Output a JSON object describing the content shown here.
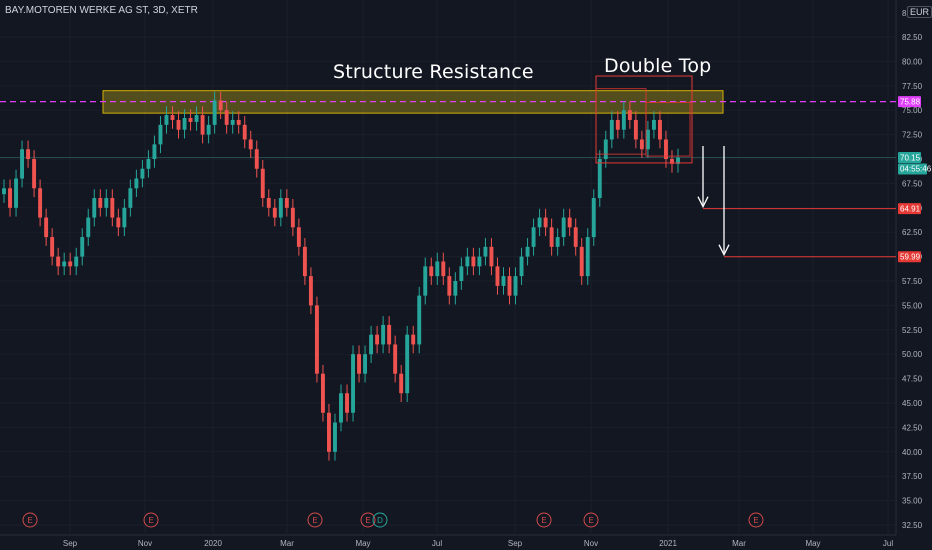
{
  "header": {
    "symbol": "BAY.MOTOREN WERKE AG ST, 3D, XETR",
    "currency": "EUR",
    "top_price_cut": "8..."
  },
  "annotations": {
    "resistance_label": "Structure Resistance",
    "pattern_label": "Double Top"
  },
  "price_tags": {
    "resistance": "75.88",
    "last": "70.15",
    "countdown": "04:55:46",
    "target1": "64.91",
    "target2": "59.99"
  },
  "colors": {
    "background": "#131722",
    "up": "#26a69a",
    "down": "#ef5350",
    "resistance_line": "#e040fb",
    "zone_fill": "#8a7a1a",
    "zone_border": "#d4b106",
    "earnings": "#d24b4b"
  },
  "earnings_markers": [
    "E",
    "E",
    "E",
    "E",
    "D",
    "E",
    "E",
    "E"
  ],
  "chart_data": {
    "type": "candlestick",
    "price_scale": {
      "min": 32.5,
      "max": 85.0,
      "ticks": [
        "82.50",
        "80.00",
        "77.50",
        "75.00",
        "72.50",
        "70.00",
        "67.50",
        "65.00",
        "62.50",
        "60.00",
        "57.50",
        "55.00",
        "52.50",
        "50.00",
        "47.50",
        "45.00",
        "42.50",
        "40.00",
        "37.50",
        "35.00",
        "32.50"
      ]
    },
    "time_labels": [
      "Sep",
      "Nov",
      "2020",
      "Mar",
      "May",
      "Jul",
      "Sep",
      "Nov",
      "2021",
      "Mar",
      "May",
      "Jul"
    ],
    "resistance_level": 75.88,
    "resistance_zone": [
      74.7,
      77.0
    ],
    "double_top_box": [
      69.6,
      78.5
    ],
    "targets": [
      64.91,
      59.99
    ],
    "closes": [
      67,
      65,
      68,
      71,
      70,
      67,
      64,
      62,
      60,
      59,
      59.5,
      59,
      60,
      62,
      64,
      66,
      65,
      66,
      64,
      63,
      65,
      67,
      68,
      69,
      70,
      71.5,
      73.5,
      74.5,
      74,
      73,
      74.2,
      73.8,
      74.5,
      72.5,
      73.5,
      76,
      75,
      73.5,
      74,
      73.5,
      72,
      71,
      69,
      66,
      65,
      64,
      66,
      65,
      63,
      61,
      58,
      55,
      48,
      44,
      40,
      43,
      46,
      44,
      50,
      48,
      50,
      52,
      51,
      53,
      51,
      48,
      46,
      52,
      51,
      56,
      59,
      58,
      59.5,
      58,
      56,
      57.5,
      59,
      60,
      59,
      60,
      61,
      59,
      57,
      58,
      56,
      58,
      60,
      61,
      63,
      64,
      63,
      61,
      62,
      64,
      63,
      61,
      58,
      62,
      66,
      70,
      72,
      74,
      73,
      75,
      74,
      72,
      71,
      73,
      74,
      72,
      70,
      69.5,
      70.15
    ],
    "wick": 0.9
  }
}
